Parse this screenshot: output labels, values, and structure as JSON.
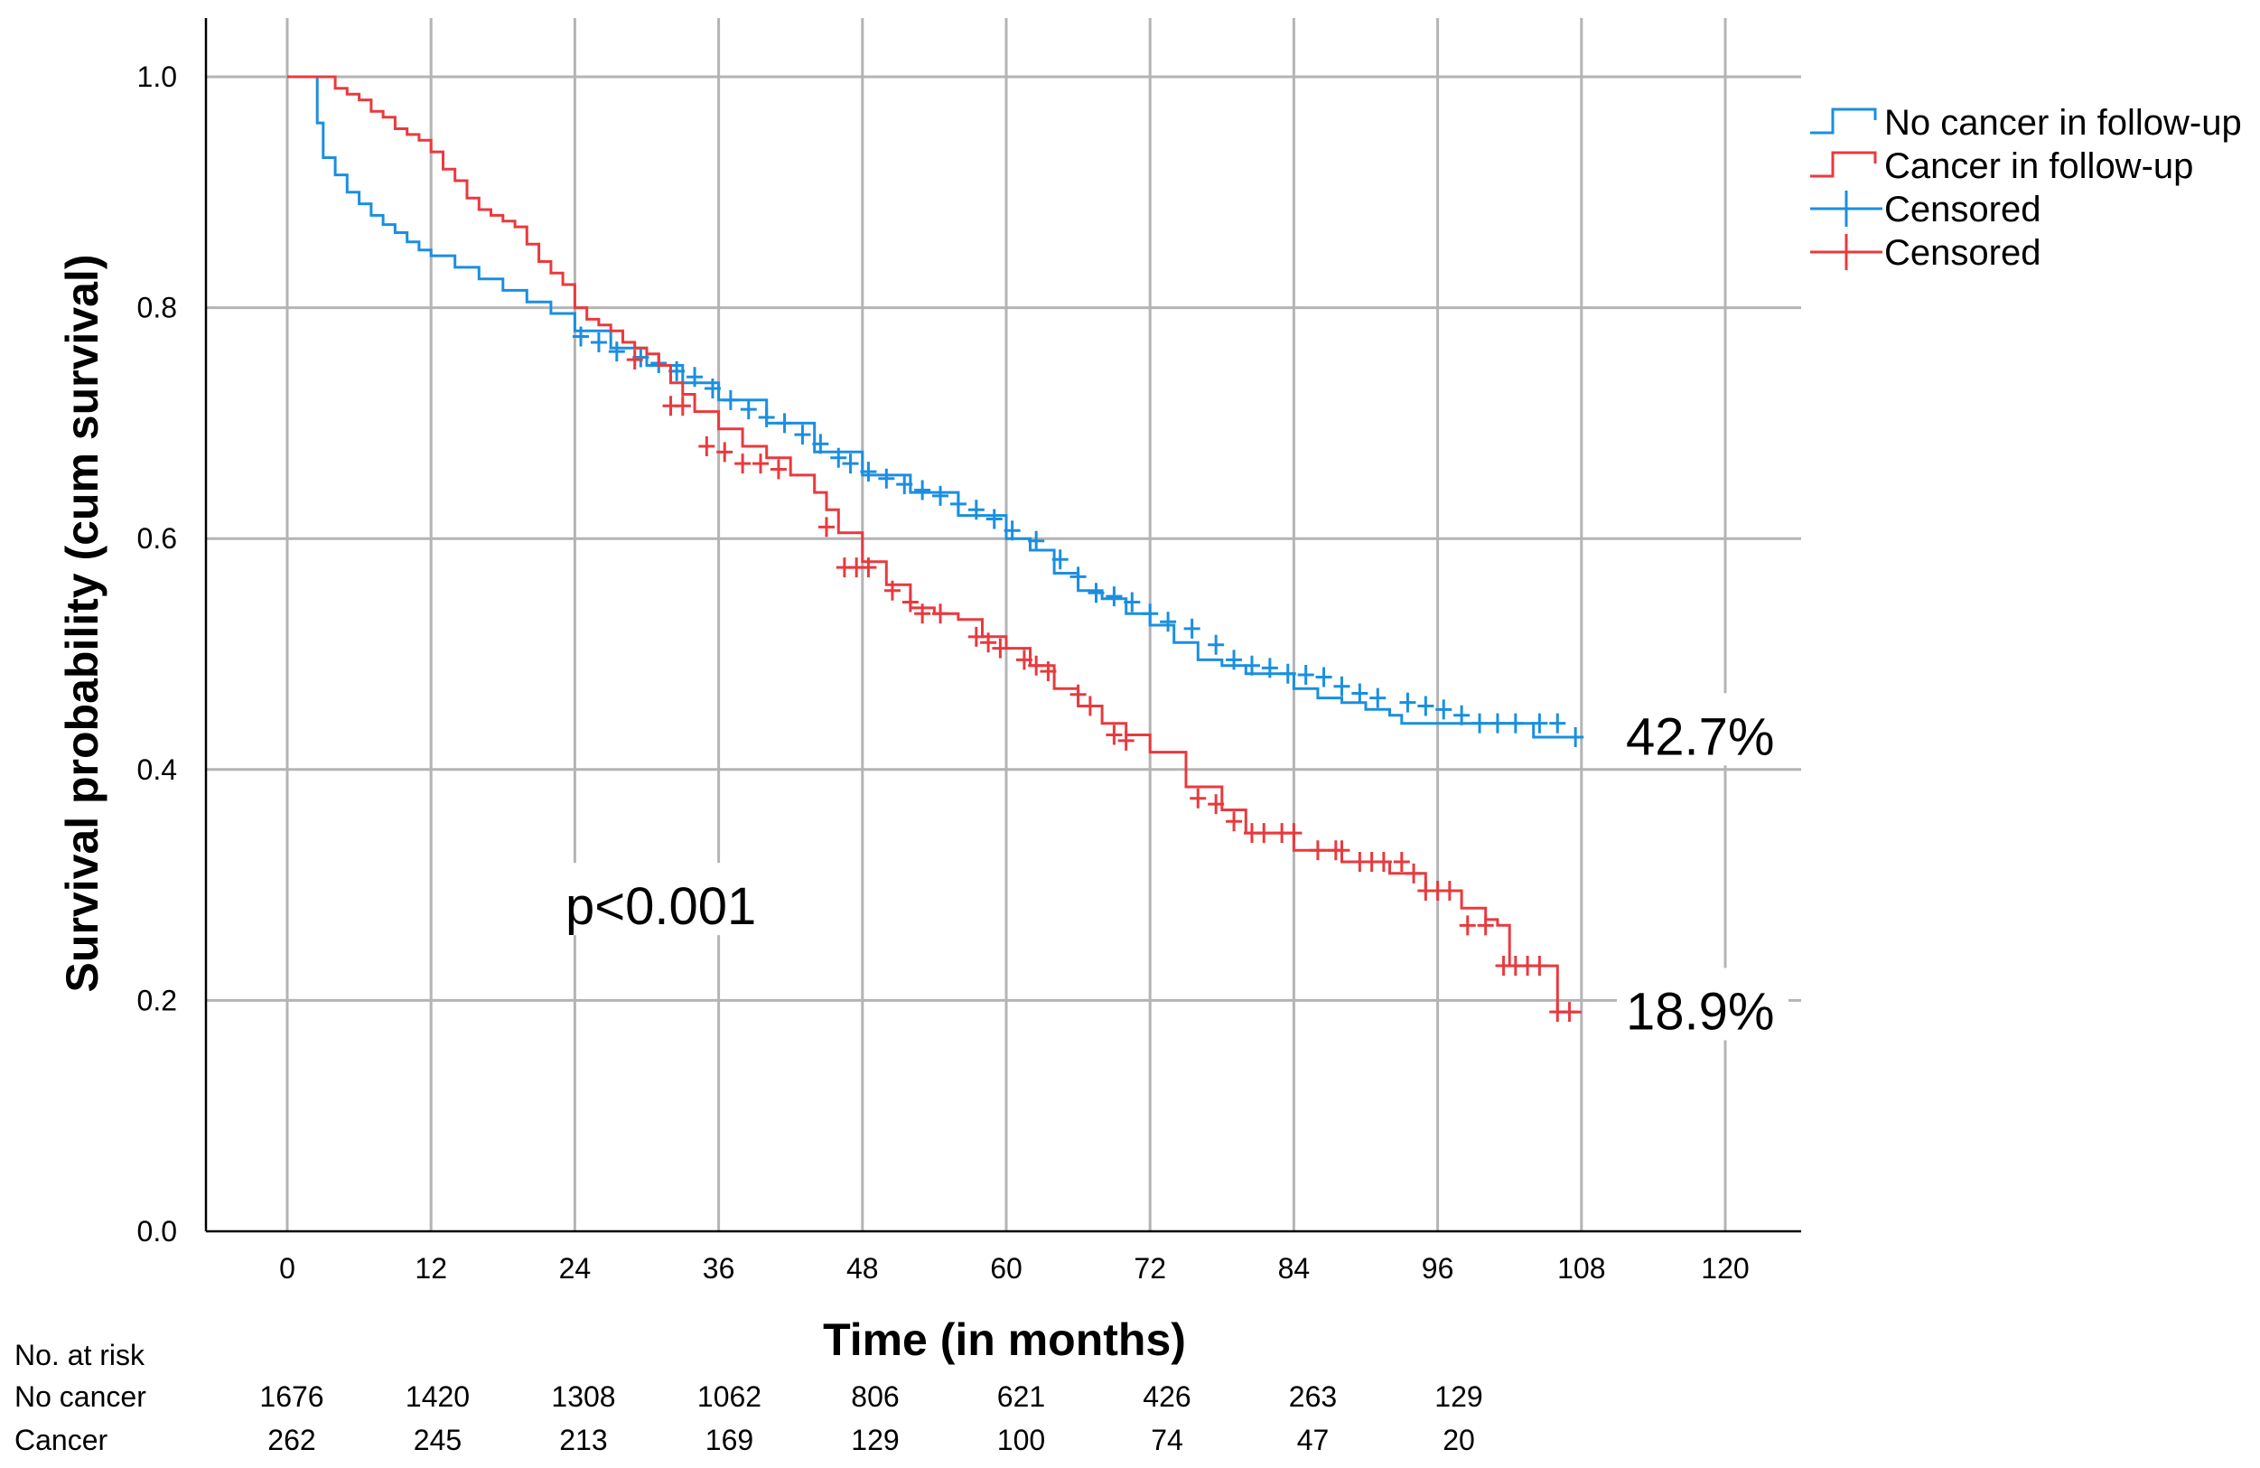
{
  "chart_data": {
    "type": "line",
    "subtype": "kaplan-meier",
    "title": "",
    "xlabel": "Time (in months)",
    "ylabel": "Survival probability (cum survival)",
    "xlim": [
      0,
      120
    ],
    "ylim": [
      0.0,
      1.0
    ],
    "xticks": [
      0,
      12,
      24,
      36,
      48,
      60,
      72,
      84,
      96,
      108,
      120
    ],
    "xtick_labels": [
      "0",
      "12",
      "24",
      "36",
      "48",
      "60",
      "72",
      "84",
      "96",
      "108",
      "120"
    ],
    "yticks": [
      0.0,
      0.2,
      0.4,
      0.6,
      0.8,
      1.0
    ],
    "ytick_labels": [
      "0.0",
      "0.2",
      "0.4",
      "0.6",
      "0.8",
      "1.0"
    ],
    "grid": true,
    "legend_position": "top-right",
    "legend": [
      {
        "label": "No cancer in follow-up",
        "color": "#1a8fe0",
        "marker": "step"
      },
      {
        "label": "Cancer in follow-up",
        "color": "#e83a3e",
        "marker": "step"
      },
      {
        "label": "Censored",
        "color": "#1a8fe0",
        "marker": "cross"
      },
      {
        "label": "Censored",
        "color": "#e83a3e",
        "marker": "cross"
      }
    ],
    "series": [
      {
        "name": "No cancer in follow-up",
        "color": "#1a8fe0",
        "x": [
          0,
          2,
          2.5,
          3,
          4,
          5,
          6,
          7,
          8,
          9,
          10,
          11,
          12,
          14,
          16,
          18,
          20,
          22,
          24,
          27,
          30,
          33,
          36,
          40,
          44,
          48,
          52,
          56,
          60,
          62,
          64,
          66,
          68,
          70,
          72,
          74,
          76,
          78,
          80,
          84,
          86,
          88,
          90,
          92,
          93,
          96,
          100,
          103,
          104,
          108
        ],
        "y": [
          1.0,
          1.0,
          0.96,
          0.93,
          0.915,
          0.9,
          0.89,
          0.88,
          0.872,
          0.865,
          0.857,
          0.85,
          0.845,
          0.835,
          0.825,
          0.815,
          0.805,
          0.795,
          0.78,
          0.765,
          0.75,
          0.735,
          0.72,
          0.7,
          0.675,
          0.655,
          0.64,
          0.62,
          0.6,
          0.59,
          0.57,
          0.555,
          0.548,
          0.535,
          0.525,
          0.51,
          0.495,
          0.49,
          0.483,
          0.47,
          0.462,
          0.458,
          0.452,
          0.447,
          0.44,
          0.44,
          0.44,
          0.44,
          0.428,
          0.428
        ],
        "censored": {
          "x": [
            24.5,
            26,
            27.5,
            29.5,
            31,
            32.5,
            34,
            35.5,
            37,
            38.5,
            40,
            41.5,
            43,
            44.5,
            46,
            47,
            48.5,
            50,
            51.5,
            53,
            54.5,
            56,
            57.5,
            59,
            60.5,
            62.5,
            64.5,
            66,
            67.5,
            69,
            70.5,
            72,
            73.5,
            75.5,
            77.5,
            79,
            80.5,
            82,
            83.5,
            85,
            86.5,
            88,
            89.5,
            91,
            93.5,
            95,
            96.5,
            98,
            99.5,
            101,
            102.5,
            104.5,
            106,
            107.5
          ],
          "y": [
            0.775,
            0.77,
            0.762,
            0.757,
            0.752,
            0.745,
            0.74,
            0.73,
            0.72,
            0.712,
            0.705,
            0.7,
            0.69,
            0.682,
            0.67,
            0.665,
            0.658,
            0.652,
            0.647,
            0.642,
            0.637,
            0.63,
            0.625,
            0.617,
            0.607,
            0.598,
            0.582,
            0.567,
            0.553,
            0.55,
            0.545,
            0.535,
            0.528,
            0.522,
            0.508,
            0.495,
            0.49,
            0.488,
            0.483,
            0.482,
            0.48,
            0.472,
            0.466,
            0.462,
            0.458,
            0.455,
            0.452,
            0.447,
            0.44,
            0.44,
            0.44,
            0.44,
            0.44,
            0.428
          ]
        }
      },
      {
        "name": "Cancer in follow-up",
        "color": "#e83a3e",
        "x": [
          0,
          3,
          4,
          5,
          6,
          7,
          8,
          9,
          10,
          11,
          12,
          13,
          14,
          15,
          16,
          17,
          18,
          19,
          20,
          21,
          22,
          23,
          24,
          25,
          26,
          27,
          28,
          29,
          30,
          31,
          32,
          33,
          34,
          36,
          38,
          40,
          42,
          44,
          45,
          46,
          48,
          50,
          52,
          54,
          56,
          58,
          60,
          62,
          64,
          66,
          68,
          70,
          72,
          74,
          75,
          78,
          80,
          84,
          88,
          92,
          95,
          98,
          100,
          101,
          102,
          105,
          106,
          108
        ],
        "y": [
          1.0,
          1.0,
          0.99,
          0.985,
          0.98,
          0.97,
          0.965,
          0.955,
          0.95,
          0.945,
          0.935,
          0.92,
          0.91,
          0.895,
          0.885,
          0.88,
          0.875,
          0.87,
          0.855,
          0.84,
          0.83,
          0.82,
          0.8,
          0.79,
          0.785,
          0.78,
          0.77,
          0.765,
          0.76,
          0.75,
          0.735,
          0.725,
          0.71,
          0.695,
          0.68,
          0.67,
          0.655,
          0.64,
          0.625,
          0.605,
          0.58,
          0.56,
          0.54,
          0.535,
          0.53,
          0.515,
          0.505,
          0.49,
          0.47,
          0.455,
          0.44,
          0.43,
          0.415,
          0.415,
          0.385,
          0.365,
          0.345,
          0.33,
          0.32,
          0.31,
          0.295,
          0.28,
          0.27,
          0.265,
          0.23,
          0.23,
          0.19,
          0.19
        ],
        "censored": {
          "x": [
            29,
            32,
            33,
            35,
            36.5,
            38,
            39.5,
            41,
            45,
            46.5,
            47.5,
            48.5,
            50.5,
            52,
            53,
            54.5,
            57.5,
            58.5,
            59.5,
            61.5,
            62.5,
            63.5,
            66,
            67,
            69,
            70,
            76,
            77.5,
            79,
            80.5,
            81.5,
            83,
            84,
            86,
            87.5,
            88,
            89.5,
            90.5,
            91.5,
            93,
            94,
            95,
            96,
            97,
            98.5,
            100,
            101.5,
            102.5,
            103.5,
            104.5,
            106,
            107
          ],
          "y": [
            0.755,
            0.715,
            0.715,
            0.68,
            0.675,
            0.665,
            0.665,
            0.66,
            0.61,
            0.575,
            0.575,
            0.575,
            0.555,
            0.545,
            0.535,
            0.535,
            0.515,
            0.51,
            0.505,
            0.495,
            0.49,
            0.485,
            0.465,
            0.455,
            0.43,
            0.425,
            0.375,
            0.37,
            0.355,
            0.345,
            0.345,
            0.345,
            0.345,
            0.33,
            0.33,
            0.33,
            0.32,
            0.32,
            0.32,
            0.32,
            0.31,
            0.295,
            0.295,
            0.295,
            0.265,
            0.265,
            0.23,
            0.23,
            0.23,
            0.23,
            0.19,
            0.19
          ]
        }
      }
    ],
    "annotations": [
      {
        "text": "p<0.001",
        "x": 30,
        "y": 0.28
      },
      {
        "text": "42.7%",
        "x": 113,
        "y": 0.427
      },
      {
        "text": "18.9%",
        "x": 113,
        "y": 0.189
      }
    ],
    "risk_table": {
      "title": "No. at risk",
      "rows": [
        {
          "label": "No cancer",
          "values": [
            "1676",
            "1420",
            "1308",
            "1062",
            "806",
            "621",
            "426",
            "263",
            "129"
          ]
        },
        {
          "label": "Cancer",
          "values": [
            "262",
            "245",
            "213",
            "169",
            "129",
            "100",
            "74",
            "47",
            "20"
          ]
        }
      ]
    }
  }
}
